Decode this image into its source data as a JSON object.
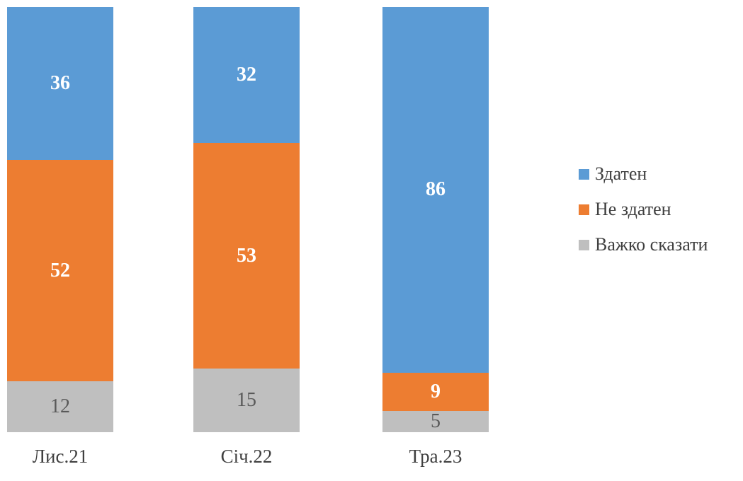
{
  "chart_data": {
    "type": "bar",
    "subtype": "stacked-column-100",
    "title": "",
    "xlabel": "",
    "ylabel": "",
    "ylim": [
      0,
      100
    ],
    "grid": false,
    "axes_visible": false,
    "legend_position": "right",
    "categories": [
      "Лис.21",
      "Січ.22",
      "Тра.23"
    ],
    "series": [
      {
        "name": "Здатен",
        "color": "#5B9BD5",
        "values": [
          36,
          32,
          86
        ],
        "label_color": "#FFFFFF",
        "label_bold": true
      },
      {
        "name": "Не здатен",
        "color": "#ED7D31",
        "values": [
          52,
          53,
          9
        ],
        "label_color": "#FFFFFF",
        "label_bold": true
      },
      {
        "name": "Важко сказати",
        "color": "#BFBFBF",
        "values": [
          12,
          15,
          5
        ],
        "label_color": "#595959",
        "label_bold": false
      }
    ],
    "stack_totals": [
      100,
      100,
      100
    ]
  },
  "legend": {
    "items": [
      {
        "label": "Здатен",
        "color": "#5B9BD5"
      },
      {
        "label": "Не здатен",
        "color": "#ED7D31"
      },
      {
        "label": "Важко сказати",
        "color": "#BFBFBF"
      }
    ]
  },
  "colors": {
    "series_blue": "#5B9BD5",
    "series_orange": "#ED7D31",
    "series_gray": "#BFBFBF",
    "value_label_light": "#FFFFFF",
    "value_label_dark": "#595959",
    "axis_text": "#404040",
    "background": "#FFFFFF"
  }
}
